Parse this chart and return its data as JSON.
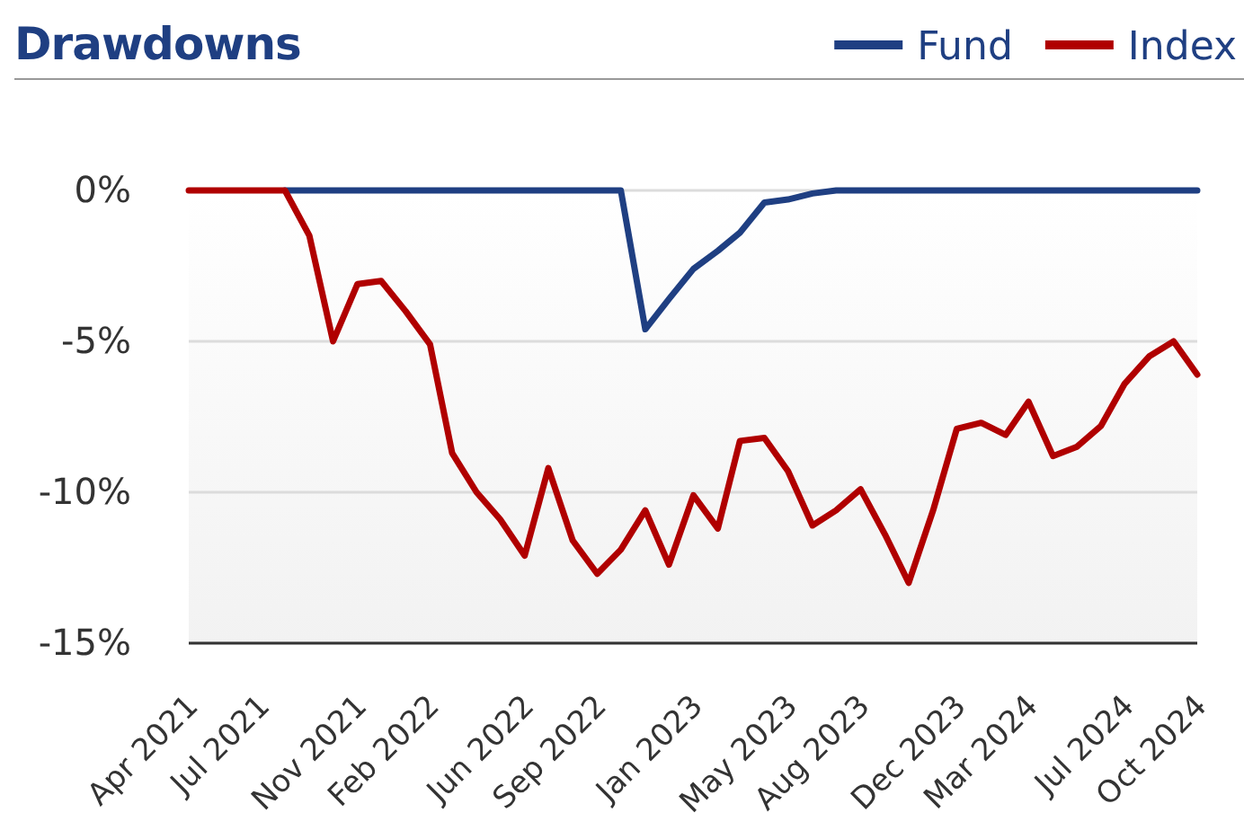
{
  "chart_data": {
    "type": "line",
    "title": "Drawdowns",
    "x": [
      "2021-04",
      "2021-05",
      "2021-06",
      "2021-07",
      "2021-08",
      "2021-09",
      "2021-10",
      "2021-11",
      "2021-12",
      "2022-01",
      "2022-02",
      "2022-03",
      "2022-04",
      "2022-05",
      "2022-06",
      "2022-07",
      "2022-08",
      "2022-09",
      "2022-10",
      "2022-11",
      "2022-12",
      "2023-01",
      "2023-02",
      "2023-03",
      "2023-04",
      "2023-05",
      "2023-06",
      "2023-07",
      "2023-08",
      "2023-09",
      "2023-10",
      "2023-11",
      "2023-12",
      "2024-01",
      "2024-02",
      "2024-03",
      "2024-04",
      "2024-05",
      "2024-06",
      "2024-07",
      "2024-08",
      "2024-09",
      "2024-10"
    ],
    "series": [
      {
        "name": "Fund",
        "color": "#1f3f82",
        "values": [
          null,
          null,
          null,
          null,
          0,
          0,
          0,
          0,
          0,
          0,
          0,
          0,
          0,
          0,
          0,
          0,
          0,
          0,
          0,
          -4.6,
          -3.6,
          -2.6,
          -2.0,
          -1.4,
          -0.4,
          -0.3,
          -0.1,
          0,
          0,
          0,
          0,
          0,
          0,
          0,
          0,
          0,
          0,
          0,
          0,
          0,
          0,
          0,
          0
        ]
      },
      {
        "name": "Index",
        "color": "#b00000",
        "values": [
          0,
          0,
          0,
          0,
          0,
          -1.5,
          -5.0,
          -3.1,
          -3.0,
          -4.0,
          -5.1,
          -8.7,
          -10.0,
          -10.9,
          -12.1,
          -9.2,
          -11.6,
          -12.7,
          -11.9,
          -10.6,
          -12.4,
          -10.1,
          -11.2,
          -8.3,
          -8.2,
          -9.3,
          -11.1,
          -10.6,
          -9.9,
          -11.4,
          -13.0,
          -10.6,
          -7.9,
          -7.7,
          -8.1,
          -7.0,
          -8.8,
          -8.5,
          -7.8,
          -6.4,
          -5.5,
          -5.0,
          -6.1
        ]
      }
    ],
    "xlim": [
      "2021-04",
      "2024-10"
    ],
    "xticks": [
      {
        "value": "2021-04",
        "label": "Apr 2021"
      },
      {
        "value": "2021-07",
        "label": "Jul 2021"
      },
      {
        "value": "2021-11",
        "label": "Nov 2021"
      },
      {
        "value": "2022-02",
        "label": "Feb 2022"
      },
      {
        "value": "2022-06",
        "label": "Jun 2022"
      },
      {
        "value": "2022-09",
        "label": "Sep 2022"
      },
      {
        "value": "2023-01",
        "label": "Jan 2023"
      },
      {
        "value": "2023-05",
        "label": "May 2023"
      },
      {
        "value": "2023-08",
        "label": "Aug 2023"
      },
      {
        "value": "2023-12",
        "label": "Dec 2023"
      },
      {
        "value": "2024-03",
        "label": "Mar 2024"
      },
      {
        "value": "2024-07",
        "label": "Jul 2024"
      },
      {
        "value": "2024-10",
        "label": "Oct 2024"
      }
    ],
    "ylim": [
      -15,
      0
    ],
    "yticks": [
      {
        "value": 0,
        "label": "0%"
      },
      {
        "value": -5,
        "label": "-5%"
      },
      {
        "value": -10,
        "label": "-10%"
      },
      {
        "value": -15,
        "label": "-15%"
      }
    ],
    "grid": "y",
    "legend": "top right",
    "marker": "none",
    "line_style": "solid"
  }
}
